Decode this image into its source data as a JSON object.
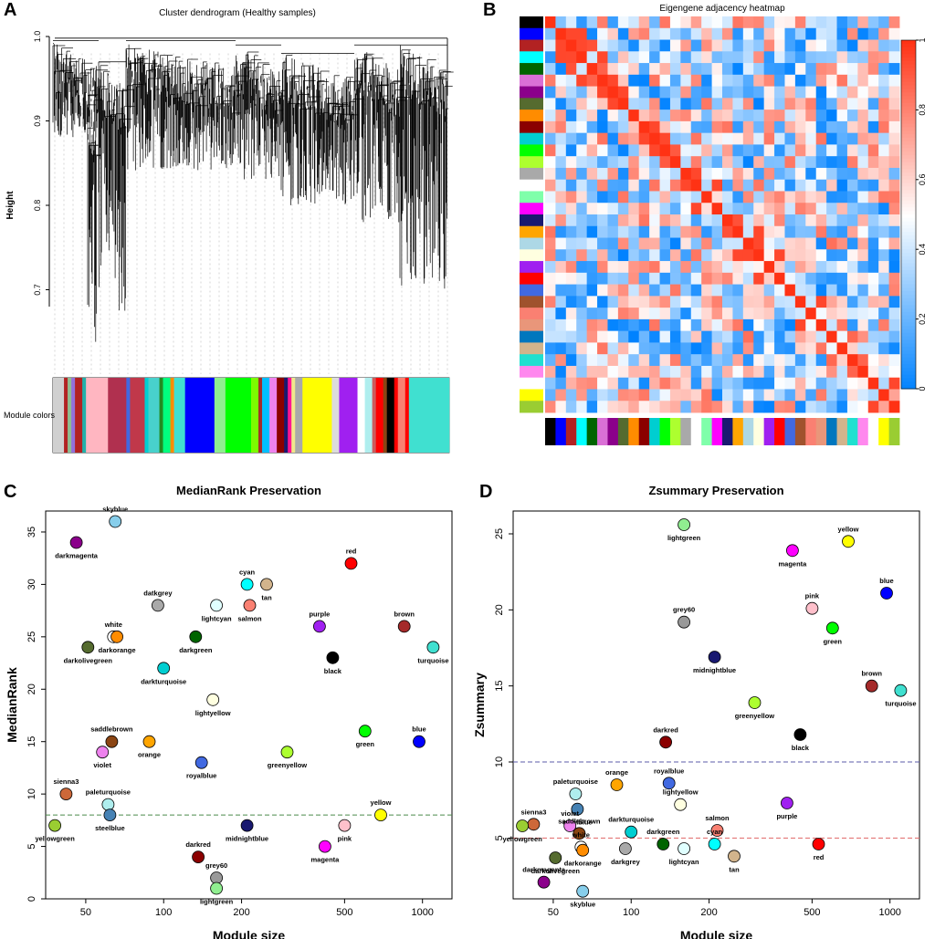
{
  "chart_data": [
    {
      "panel": "A",
      "type": "dendrogram",
      "title": "Cluster dendrogram (Healthy samples)",
      "ylabel": "Height",
      "ylim": [
        0.6,
        1.0
      ],
      "yticks": [
        "0.7",
        "0.8",
        "0.9",
        "1.0"
      ],
      "ytick_values": [
        0.7,
        0.8,
        0.9,
        1.0
      ],
      "color_bar_label": "Module colors",
      "module_color_bands": [
        {
          "color": "#d0d0d0",
          "width": 3
        },
        {
          "color": "#b22222",
          "width": 1
        },
        {
          "color": "#8fbc8f",
          "width": 1
        },
        {
          "color": "#9370db",
          "width": 1
        },
        {
          "color": "#b22222",
          "width": 2
        },
        {
          "color": "#20b2aa",
          "width": 1
        },
        {
          "color": "#ffb6c1",
          "width": 6
        },
        {
          "color": "#b0304f",
          "width": 5
        },
        {
          "color": "#4169e1",
          "width": 1
        },
        {
          "color": "#c0384a",
          "width": 4
        },
        {
          "color": "#00ced1",
          "width": 1
        },
        {
          "color": "#48d1cc",
          "width": 3
        },
        {
          "color": "#228b22",
          "width": 1
        },
        {
          "color": "#00ff7f",
          "width": 2
        },
        {
          "color": "#ff8c00",
          "width": 1
        },
        {
          "color": "#40e0d0",
          "width": 3
        },
        {
          "color": "#0000ff",
          "width": 8
        },
        {
          "color": "#90ee90",
          "width": 3
        },
        {
          "color": "#00ff00",
          "width": 7
        },
        {
          "color": "#7cfc00",
          "width": 2
        },
        {
          "color": "#a52a2a",
          "width": 1
        },
        {
          "color": "#00bfff",
          "width": 2
        },
        {
          "color": "#ee82ee",
          "width": 2
        },
        {
          "color": "#8b0000",
          "width": 2
        },
        {
          "color": "#191970",
          "width": 1
        },
        {
          "color": "#ff1493",
          "width": 1
        },
        {
          "color": "#f0e68c",
          "width": 1
        },
        {
          "color": "#a9a9a9",
          "width": 2
        },
        {
          "color": "#ffff00",
          "width": 8
        },
        {
          "color": "#dcdcdc",
          "width": 2
        },
        {
          "color": "#a020f0",
          "width": 5
        },
        {
          "color": "#ffffff",
          "width": 2
        },
        {
          "color": "#afeeee",
          "width": 2
        },
        {
          "color": "#cd5c5c",
          "width": 1
        },
        {
          "color": "#ff0000",
          "width": 2
        },
        {
          "color": "#8b4513",
          "width": 1
        },
        {
          "color": "#000000",
          "width": 2
        },
        {
          "color": "#ff0000",
          "width": 1
        },
        {
          "color": "#fa8072",
          "width": 2
        },
        {
          "color": "#ff0000",
          "width": 1
        },
        {
          "color": "#40e0d0",
          "width": 11
        }
      ]
    },
    {
      "panel": "B",
      "type": "heatmap",
      "title": "Eigengene adjacency heatmap",
      "colorbar_ticks": [
        "0",
        "0.2",
        "0.4",
        "0.6",
        "0.8",
        "1"
      ],
      "colorbar_tick_values": [
        0,
        0.2,
        0.4,
        0.6,
        0.8,
        1
      ],
      "module_colors": [
        "#000000",
        "#0000ff",
        "#b22222",
        "#00ffff",
        "#006400",
        "#da70d6",
        "#8b008b",
        "#556b2f",
        "#ff8c00",
        "#8b0000",
        "#00ced1",
        "#00ff00",
        "#adff2f",
        "#a9a9a9",
        "#ffffff",
        "#7fffaa",
        "#ff00ff",
        "#191970",
        "#ffa500",
        "#add8e6",
        "#ffffe0",
        "#a020f0",
        "#ff0000",
        "#4169e1",
        "#a0522d",
        "#fa8072",
        "#e9967a",
        "#0077be",
        "#d2b48c",
        "#20e0d0",
        "#ff88ee",
        "#ffffff",
        "#ffff00",
        "#9acd32"
      ]
    },
    {
      "panel": "C",
      "type": "scatter",
      "title": "MedianRank Preservation",
      "xlabel": "Module size",
      "ylabel": "MedianRank",
      "xscale": "log",
      "xlim": [
        35,
        1300
      ],
      "ylim": [
        0,
        37
      ],
      "xticks": [
        50,
        100,
        200,
        500,
        1000
      ],
      "yticks": [
        0,
        5,
        10,
        15,
        20,
        25,
        30,
        35
      ],
      "threshold": 8,
      "points": [
        {
          "label": "skyblue",
          "x": 65,
          "y": 36,
          "color": "#87ceeb"
        },
        {
          "label": "darkmagenta",
          "x": 46,
          "y": 34,
          "color": "#8b008b"
        },
        {
          "label": "red",
          "x": 530,
          "y": 32,
          "color": "#ff0000"
        },
        {
          "label": "cyan",
          "x": 210,
          "y": 30,
          "color": "#00ffff"
        },
        {
          "label": "tan",
          "x": 250,
          "y": 30,
          "color": "#d2b48c"
        },
        {
          "label": "datkgrey",
          "x": 95,
          "y": 28,
          "color": "#a9a9a9"
        },
        {
          "label": "lightcyan",
          "x": 160,
          "y": 28,
          "color": "#e0ffff"
        },
        {
          "label": "salmon",
          "x": 215,
          "y": 28,
          "color": "#fa8072"
        },
        {
          "label": "purple",
          "x": 400,
          "y": 26,
          "color": "#a020f0"
        },
        {
          "label": "brown",
          "x": 850,
          "y": 26,
          "color": "#a52a2a"
        },
        {
          "label": "white",
          "x": 64,
          "y": 25,
          "color": "#ffffff"
        },
        {
          "label": "darkorange",
          "x": 66,
          "y": 25,
          "color": "#ff8c00"
        },
        {
          "label": "darkgreen",
          "x": 133,
          "y": 25,
          "color": "#006400"
        },
        {
          "label": "darkolivegreen",
          "x": 51,
          "y": 24,
          "color": "#556b2f"
        },
        {
          "label": "turquoise",
          "x": 1100,
          "y": 24,
          "color": "#40e0d0"
        },
        {
          "label": "black",
          "x": 450,
          "y": 23,
          "color": "#000000"
        },
        {
          "label": "darkturquoise",
          "x": 100,
          "y": 22,
          "color": "#00ced1"
        },
        {
          "label": "lightyellow",
          "x": 155,
          "y": 19,
          "color": "#ffffe0"
        },
        {
          "label": "green",
          "x": 600,
          "y": 16,
          "color": "#00ff00"
        },
        {
          "label": "blue",
          "x": 970,
          "y": 15,
          "color": "#0000ff"
        },
        {
          "label": "saddlebrown",
          "x": 63,
          "y": 15,
          "color": "#8b4513"
        },
        {
          "label": "orange",
          "x": 88,
          "y": 15,
          "color": "#ffa500"
        },
        {
          "label": "violet",
          "x": 58,
          "y": 14,
          "color": "#ee82ee"
        },
        {
          "label": "greenyellow",
          "x": 300,
          "y": 14,
          "color": "#adff2f"
        },
        {
          "label": "royalblue",
          "x": 140,
          "y": 13,
          "color": "#4169e1"
        },
        {
          "label": "sienna3",
          "x": 42,
          "y": 10,
          "color": "#cd6839"
        },
        {
          "label": "paleturquoise",
          "x": 61,
          "y": 9,
          "color": "#afeeee"
        },
        {
          "label": "steelblue",
          "x": 62,
          "y": 8,
          "color": "#4682b4"
        },
        {
          "label": "yellow",
          "x": 690,
          "y": 8,
          "color": "#ffff00"
        },
        {
          "label": "yellowgreen",
          "x": 38,
          "y": 7,
          "color": "#9acd32"
        },
        {
          "label": "midnightblue",
          "x": 210,
          "y": 7,
          "color": "#191970"
        },
        {
          "label": "pink",
          "x": 500,
          "y": 7,
          "color": "#ffc0cb"
        },
        {
          "label": "magenta",
          "x": 420,
          "y": 5,
          "color": "#ff00ff"
        },
        {
          "label": "darkred",
          "x": 136,
          "y": 4,
          "color": "#8b0000"
        },
        {
          "label": "grey60",
          "x": 160,
          "y": 2,
          "color": "#999999"
        },
        {
          "label": "lightgreen",
          "x": 160,
          "y": 1,
          "color": "#90ee90"
        }
      ]
    },
    {
      "panel": "D",
      "type": "scatter",
      "title": "Zsummary Preservation",
      "xlabel": "Module size",
      "ylabel": "Zsummary",
      "xscale": "log",
      "xlim": [
        35,
        1300
      ],
      "ylim": [
        1,
        26.5
      ],
      "xticks": [
        50,
        100,
        200,
        500,
        1000
      ],
      "yticks": [
        5,
        10,
        15,
        20,
        25
      ],
      "thresholds": [
        {
          "y": 10,
          "color": "#5b5ba8"
        },
        {
          "y": 5,
          "color": "#e06666"
        }
      ],
      "points": [
        {
          "label": "lightgreen",
          "x": 160,
          "y": 25.6,
          "color": "#90ee90"
        },
        {
          "label": "yellow",
          "x": 690,
          "y": 24.5,
          "color": "#ffff00"
        },
        {
          "label": "magenta",
          "x": 420,
          "y": 23.9,
          "color": "#ff00ff"
        },
        {
          "label": "blue",
          "x": 970,
          "y": 21.1,
          "color": "#0000ff"
        },
        {
          "label": "pink",
          "x": 500,
          "y": 20.1,
          "color": "#ffc0cb"
        },
        {
          "label": "grey60",
          "x": 160,
          "y": 19.2,
          "color": "#999999"
        },
        {
          "label": "green",
          "x": 600,
          "y": 18.8,
          "color": "#00ff00"
        },
        {
          "label": "midnightblue",
          "x": 210,
          "y": 16.9,
          "color": "#191970"
        },
        {
          "label": "brown",
          "x": 850,
          "y": 15.0,
          "color": "#a52a2a"
        },
        {
          "label": "turquoise",
          "x": 1100,
          "y": 14.7,
          "color": "#40e0d0"
        },
        {
          "label": "greenyellow",
          "x": 300,
          "y": 13.9,
          "color": "#adff2f"
        },
        {
          "label": "black",
          "x": 450,
          "y": 11.8,
          "color": "#000000"
        },
        {
          "label": "darkred",
          "x": 136,
          "y": 11.3,
          "color": "#8b0000"
        },
        {
          "label": "orange",
          "x": 88,
          "y": 8.5,
          "color": "#ffa500"
        },
        {
          "label": "royalblue",
          "x": 140,
          "y": 8.6,
          "color": "#4169e1"
        },
        {
          "label": "paleturquoise",
          "x": 61,
          "y": 7.9,
          "color": "#afeeee"
        },
        {
          "label": "lightyellow",
          "x": 155,
          "y": 7.2,
          "color": "#ffffe0"
        },
        {
          "label": "purple",
          "x": 400,
          "y": 7.3,
          "color": "#a020f0"
        },
        {
          "label": "steelblue",
          "x": 62,
          "y": 6.9,
          "color": "#4682b4"
        },
        {
          "label": "sienna3",
          "x": 42,
          "y": 5.9,
          "color": "#cd6839"
        },
        {
          "label": "yellowgreen",
          "x": 38,
          "y": 5.8,
          "color": "#9acd32"
        },
        {
          "label": "violet",
          "x": 58,
          "y": 5.8,
          "color": "#ee82ee"
        },
        {
          "label": "saddlebrown",
          "x": 63,
          "y": 5.3,
          "color": "#8b4513"
        },
        {
          "label": "darkturquoise",
          "x": 100,
          "y": 5.4,
          "color": "#00ced1"
        },
        {
          "label": "salmon",
          "x": 215,
          "y": 5.5,
          "color": "#fa8072"
        },
        {
          "label": "white",
          "x": 64,
          "y": 4.4,
          "color": "#ffffff"
        },
        {
          "label": "darkorange",
          "x": 65,
          "y": 4.2,
          "color": "#ff8c00"
        },
        {
          "label": "darkgreen",
          "x": 133,
          "y": 4.6,
          "color": "#006400"
        },
        {
          "label": "darkgrey",
          "x": 95,
          "y": 4.3,
          "color": "#a9a9a9"
        },
        {
          "label": "lightcyan",
          "x": 160,
          "y": 4.3,
          "color": "#e0ffff"
        },
        {
          "label": "cyan",
          "x": 210,
          "y": 4.6,
          "color": "#00ffff"
        },
        {
          "label": "red",
          "x": 530,
          "y": 4.6,
          "color": "#ff0000"
        },
        {
          "label": "darkolivegreen",
          "x": 51,
          "y": 3.7,
          "color": "#556b2f"
        },
        {
          "label": "tan",
          "x": 250,
          "y": 3.8,
          "color": "#d2b48c"
        },
        {
          "label": "darkmagenta",
          "x": 46,
          "y": 2.1,
          "color": "#8b008b"
        },
        {
          "label": "skyblue",
          "x": 65,
          "y": 1.5,
          "color": "#87ceeb"
        }
      ]
    }
  ]
}
